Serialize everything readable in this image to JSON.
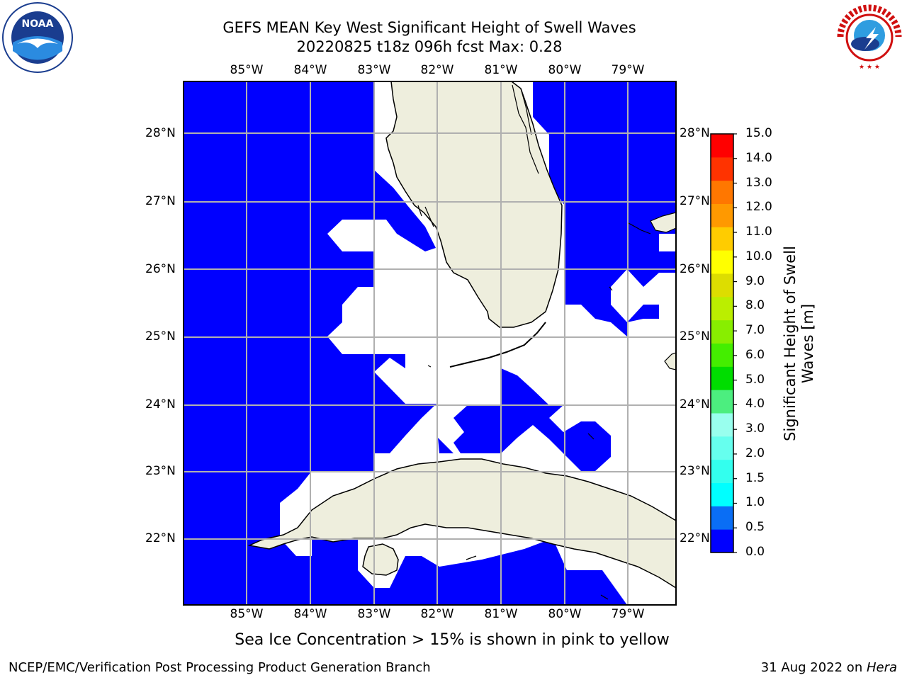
{
  "title": {
    "line1": "GEFS MEAN Key West Significant Height of Swell Waves",
    "line2": "20220825 t18z 096h fcst   Max: 0.28"
  },
  "map": {
    "lon_labels": [
      "85°W",
      "84°W",
      "83°W",
      "82°W",
      "81°W",
      "80°W",
      "79°W"
    ],
    "lat_labels": [
      "28°N",
      "27°N",
      "26°N",
      "25°N",
      "24°N",
      "23°N",
      "22°N"
    ],
    "colors": {
      "water": "#0000ff",
      "land": "#eeeedd",
      "grid": "#b0b0b0",
      "nodata": "#ffffff"
    }
  },
  "colorbar": {
    "title": "Significant Height of Swell Waves [m]",
    "ticks": [
      "0.0",
      "0.5",
      "1.0",
      "1.5",
      "2.0",
      "3.0",
      "4.0",
      "5.0",
      "6.0",
      "7.0",
      "8.0",
      "9.0",
      "10.0",
      "11.0",
      "12.0",
      "13.0",
      "14.0",
      "15.0"
    ],
    "colors": [
      "#0000ff",
      "#0a6ef5",
      "#00ffff",
      "#33ffee",
      "#66ffee",
      "#99ffee",
      "#4cee7f",
      "#00dd00",
      "#44ee00",
      "#88ee00",
      "#bbee00",
      "#dddd00",
      "#ffff00",
      "#ffcc00",
      "#ff9900",
      "#ff7700",
      "#ff3300",
      "#ff0000"
    ]
  },
  "caption": "Sea Ice Concentration > 15% is shown in pink to yellow",
  "footer": {
    "left": "NCEP/EMC/Verification Post Processing Product Generation Branch",
    "right_prefix": "31 Aug 2022 on ",
    "right_host": "Hera"
  },
  "logos": {
    "left": {
      "name": "NOAA",
      "ring_text": "NATIONAL OCEANIC AND ATMOSPHERIC ADMINISTRATION · U.S. DEPARTMENT OF COMMERCE"
    },
    "right": {
      "name": "NATIONAL WEATHER SERVICE"
    }
  }
}
